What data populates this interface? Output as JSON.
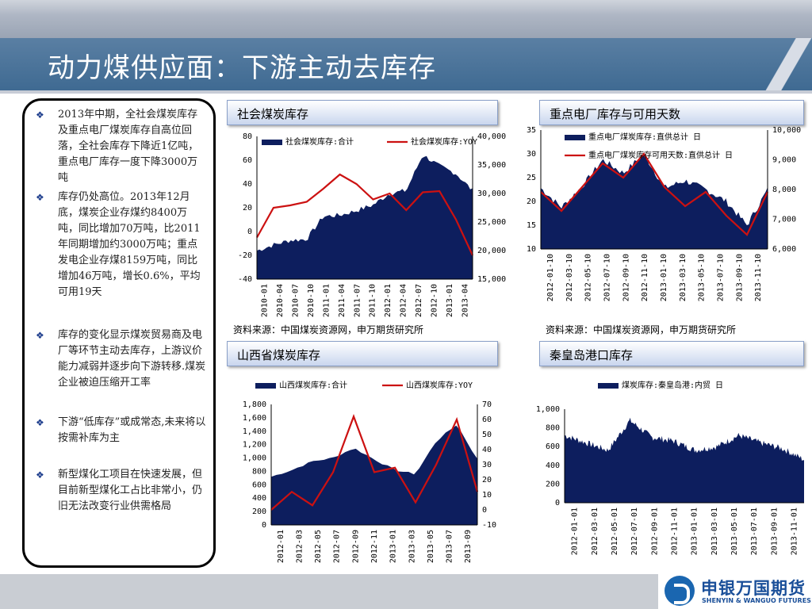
{
  "slide": {
    "title": "动力煤供应面：下游主动去库存"
  },
  "bullets": [
    "2013年中期，全社会煤炭库存及重点电厂煤炭库存自高位回落，全社会库存下降近1亿吨，重点电厂库存一度下降3000万吨",
    "库存仍处高位。2013年12月底，煤炭企业存煤约8400万吨，同比增加70万吨，比2011年同期增加约3000万吨；重点发电企业存煤8159万吨，同比增加46万吨，增长0.6%，平均可用19天",
    "库存的变化显示煤炭贸易商及电厂等环节主动去库存，上游议价能力减弱并逐步向下游转移.煤炭企业被迫压缩开工率",
    "下游“低库存”或成常态,未来将以按需补库为主",
    "新型煤化工项目在快速发展，但目前新型煤化工占比非常小，仍旧无法改变行业供需格局"
  ],
  "panels": {
    "p1_header": "社会煤炭库存",
    "p2_header": "重点电厂库存与可用天数",
    "p3_header": "山西省煤炭库存",
    "p4_header": "秦皇岛港口库存",
    "source_1": "资料来源：中国煤炭资源网，申万期货研究所",
    "source_2": "资料来源：中国煤炭资源网，申万期货研究所"
  },
  "logo": {
    "cn": "申银万国期货",
    "en": "SHENYIN & WANGUO FUTURES"
  },
  "colors": {
    "area": "#0d1e5e",
    "line": "#cc1111",
    "title_bar": "#3f6a92"
  },
  "chart_data": [
    {
      "id": "social",
      "type": "area+line",
      "x": [
        "2010-01",
        "2010-04",
        "2010-07",
        "2010-10",
        "2011-01",
        "2011-04",
        "2011-07",
        "2011-10",
        "2012-01",
        "2012-04",
        "2012-07",
        "2012-10",
        "2013-01",
        "2013-04"
      ],
      "series": [
        {
          "name": "社会煤炭库存:合计",
          "axis": "right",
          "kind": "area",
          "values": [
            20000,
            21000,
            21800,
            22000,
            26000,
            26200,
            27000,
            28000,
            30000,
            30500,
            36800,
            34800,
            33500,
            30500
          ]
        },
        {
          "name": "社会煤炭库存:YOY",
          "axis": "left",
          "kind": "line",
          "values": [
            -5,
            20,
            22,
            25,
            36,
            48,
            40,
            27,
            32,
            18,
            33,
            34,
            10,
            -20
          ]
        }
      ],
      "y_left": {
        "range": [
          -40,
          80
        ],
        "ticks": [
          "80",
          "60",
          "40",
          "20",
          "0",
          "-20",
          "-40"
        ]
      },
      "y_right": {
        "range": [
          15000,
          40000
        ],
        "ticks": [
          "40,000",
          "35,000",
          "30,000",
          "25,000",
          "20,000",
          "15,000"
        ]
      }
    },
    {
      "id": "power",
      "type": "area+line",
      "x": [
        "2012-01-10",
        "2012-03-10",
        "2012-05-10",
        "2012-07-10",
        "2012-09-10",
        "2012-11-10",
        "2013-01-10",
        "2013-03-10",
        "2013-05-10",
        "2013-07-10",
        "2013-09-10",
        "2013-11-10"
      ],
      "series": [
        {
          "name": "重点电厂煤炭库存:直供总计 日",
          "axis": "right",
          "kind": "area",
          "values": [
            8050,
            7400,
            8100,
            9000,
            8550,
            9200,
            8050,
            8300,
            8000,
            7600,
            6800,
            8000
          ]
        },
        {
          "name": "重点电厂煤炭库存可用天数:直供总计 日",
          "axis": "left",
          "kind": "line",
          "values": [
            22,
            18,
            23,
            28,
            25,
            30,
            23,
            19,
            22,
            17,
            13,
            22
          ]
        }
      ],
      "y_left": {
        "range": [
          10,
          35
        ],
        "ticks": [
          "35",
          "30",
          "25",
          "20",
          "15",
          "10"
        ]
      },
      "y_right": {
        "range": [
          6000,
          10000
        ],
        "ticks": [
          "10,000",
          "9,000",
          "8,000",
          "7,000",
          "6,000"
        ]
      }
    },
    {
      "id": "shanxi",
      "type": "area+line",
      "x": [
        "2012-01",
        "2012-03",
        "2012-05",
        "2012-07",
        "2012-09",
        "2012-11",
        "2013-01",
        "2013-03",
        "2013-05",
        "2013-07",
        "2013-09"
      ],
      "series": [
        {
          "name": "山西煤炭库存:合计",
          "axis": "left",
          "kind": "area",
          "values": [
            720,
            820,
            950,
            1000,
            1150,
            980,
            820,
            760,
            1250,
            1500,
            980
          ]
        },
        {
          "name": "山西煤炭库存:YOY",
          "axis": "right",
          "kind": "line",
          "values": [
            0,
            12,
            3,
            25,
            62,
            25,
            28,
            5,
            30,
            60,
            12
          ]
        }
      ],
      "y_left": {
        "range": [
          0,
          1800
        ],
        "ticks": [
          "1,800",
          "1,600",
          "1,400",
          "1,200",
          "1,000",
          "800",
          "600",
          "400",
          "200",
          "0"
        ]
      },
      "y_right": {
        "range": [
          -10,
          70
        ],
        "ticks": [
          "70",
          "60",
          "50",
          "40",
          "30",
          "20",
          "10",
          "0",
          "-10"
        ]
      }
    },
    {
      "id": "qhd",
      "type": "area",
      "x": [
        "2012-01-01",
        "2012-03-01",
        "2012-05-01",
        "2012-07-01",
        "2012-09-01",
        "2012-11-01",
        "2013-01-01",
        "2013-03-01",
        "2013-05-01",
        "2013-07-01",
        "2013-09-01",
        "2013-11-01"
      ],
      "series": [
        {
          "name": "煤炭库存:秦皇岛港:内贸 日",
          "axis": "left",
          "kind": "area",
          "values": [
            720,
            640,
            560,
            880,
            700,
            660,
            560,
            600,
            720,
            640,
            580,
            460
          ]
        }
      ],
      "y_left": {
        "range": [
          0,
          1000
        ],
        "ticks": [
          "1,000",
          "800",
          "600",
          "400",
          "200",
          "0"
        ]
      }
    }
  ]
}
